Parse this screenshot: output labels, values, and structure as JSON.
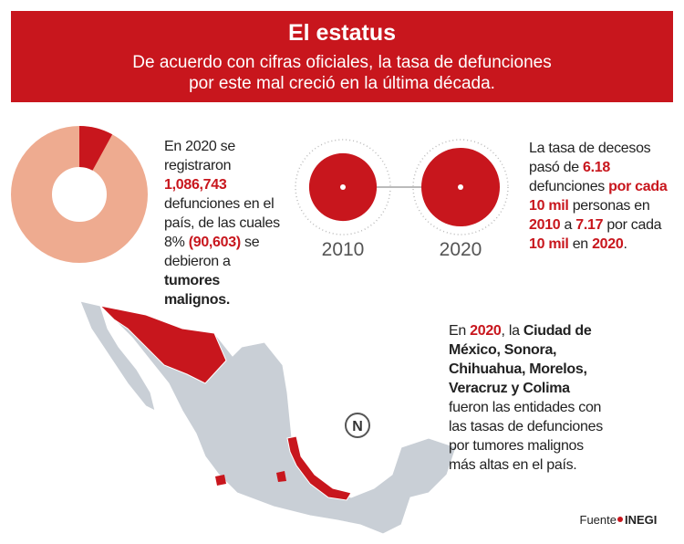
{
  "header": {
    "title": "El estatus",
    "subtitle_lines": [
      "De acuerdo con cifras oficiales, la tasa de defunciones",
      "por este mal creció en la última década."
    ]
  },
  "pie": {
    "value": 8,
    "label": "8%"
  },
  "block1": {
    "parts": [
      "En 2020 se registraron ",
      "1,086,743",
      " defunciones en el país, de las cuales ",
      "(90,603)",
      " se debieron a ",
      "tumores malignos."
    ]
  },
  "circles": [
    {
      "year": "2010",
      "value": 6.18
    },
    {
      "year": "2020",
      "value": 7.17
    }
  ],
  "block2": {
    "parts": [
      "La tasa de decesos pasó de ",
      " defunciones ",
      "por cada 10 mil",
      " personas en ",
      " a ",
      " por cada ",
      "10 mil",
      " en ",
      "."
    ]
  },
  "block3": {
    "parts": [
      "En ",
      "2020",
      ", la ",
      "Ciudad de México, Sonora, Chihuahua, Morelos, Veracruz y Colima",
      " fueron las entidades con las tasas de defunciones por tumores malignos más altas en el país."
    ]
  },
  "compass": "N",
  "footer": {
    "label": "Fuente",
    "source": "INEGI"
  }
}
